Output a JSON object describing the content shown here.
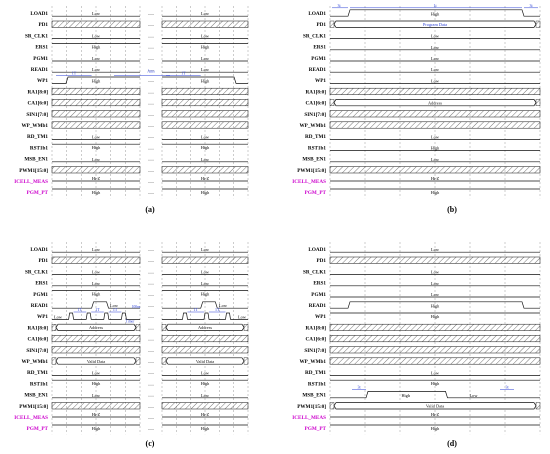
{
  "signals": [
    "LOAD1",
    "PD1",
    "SR_CLK1",
    "ERS1",
    "PGM1",
    "READ1",
    "WP1",
    "RA1[8:0]",
    "CA1[6:0]",
    "SIN1[7:0]",
    "WP_WMb1",
    "RD_TM1",
    "RST1b1",
    "MSB_EN1",
    "PWM1[15:0]",
    "ICELL_MEAS",
    "PGM_PT"
  ],
  "signal_colors": {
    "default": "#000000",
    "highlight": "#cc00cc",
    "annotation": "#2a3fd6"
  },
  "ellipsis": "…",
  "panels": [
    {
      "caption": "(a)",
      "rows": [
        {
          "kind": "level",
          "label_l": "Low",
          "label_r": "Low"
        },
        {
          "kind": "hatch"
        },
        {
          "kind": "level",
          "label_l": "Low",
          "label_r": "Low"
        },
        {
          "kind": "high",
          "label_l": "High",
          "label_r": "High"
        },
        {
          "kind": "level",
          "label_l": "Low",
          "label_r": "Low"
        },
        {
          "kind": "level",
          "label_l": "Low",
          "label_r": "Low"
        },
        {
          "kind": "wp",
          "label_l": "High",
          "label_r": "High",
          "time_l": "1T",
          "time_mid": "Ams",
          "time_r": "1T"
        },
        {
          "kind": "hatch"
        },
        {
          "kind": "hatch"
        },
        {
          "kind": "hatch"
        },
        {
          "kind": "hatch"
        },
        {
          "kind": "level",
          "label_l": "Low",
          "label_r": "Low"
        },
        {
          "kind": "high",
          "label_l": "High",
          "label_r": "High"
        },
        {
          "kind": "level",
          "label_l": "Low",
          "label_r": "Low"
        },
        {
          "kind": "hatch"
        },
        {
          "kind": "hiz",
          "label_l": "Hi-Z",
          "label_r": "Hi-Z"
        },
        {
          "kind": "high",
          "label_l": "High",
          "label_r": "High"
        }
      ]
    },
    {
      "caption": "(b)",
      "rows": [
        {
          "kind": "load",
          "label": "High",
          "time_l": "3t",
          "time_mid": "1t",
          "time_r": "3t"
        },
        {
          "kind": "bus",
          "label": "Program Data"
        },
        {
          "kind": "level",
          "label": "Low"
        },
        {
          "kind": "level",
          "label": "Low"
        },
        {
          "kind": "level",
          "label": "Low"
        },
        {
          "kind": "level",
          "label": "Low"
        },
        {
          "kind": "level",
          "label": "Low"
        },
        {
          "kind": "hatch"
        },
        {
          "kind": "bus",
          "label": "Address"
        },
        {
          "kind": "hatch"
        },
        {
          "kind": "hatch"
        },
        {
          "kind": "level",
          "label": "Low"
        },
        {
          "kind": "level",
          "label": "High"
        },
        {
          "kind": "level",
          "label": "Low"
        },
        {
          "kind": "hatch"
        },
        {
          "kind": "hiz",
          "label": "Hi-Z"
        },
        {
          "kind": "high",
          "label": "High"
        }
      ]
    },
    {
      "caption": "(c)",
      "rows": [
        {
          "kind": "level",
          "label_l": "Low",
          "label_r": "Low"
        },
        {
          "kind": "hatch"
        },
        {
          "kind": "level",
          "label_l": "Low",
          "label_r": "Low"
        },
        {
          "kind": "level",
          "label_l": "Low",
          "label_r": "Low"
        },
        {
          "kind": "high",
          "label_l": "High",
          "label_r": "High"
        },
        {
          "kind": "pulse",
          "label_l": "Low",
          "label_r": "Low"
        },
        {
          "kind": "wpc",
          "label_l": "Low",
          "label_r": "Low",
          "times_l": [
            "1T",
            "1T",
            "1T"
          ],
          "tag_l": "100ns",
          "tag_mid": "Timer",
          "times_r": [
            "1T",
            "1T"
          ]
        },
        {
          "kind": "bus",
          "label_l": "Address",
          "label_r": "Address"
        },
        {
          "kind": "hatch"
        },
        {
          "kind": "hatch"
        },
        {
          "kind": "bus",
          "label_l": "Valid Data",
          "label_r": "Valid Data"
        },
        {
          "kind": "level",
          "label_l": "Low",
          "label_r": "Low"
        },
        {
          "kind": "high",
          "label_l": "High",
          "label_r": "High"
        },
        {
          "kind": "level",
          "label_l": "Low",
          "label_r": "Low"
        },
        {
          "kind": "hatch"
        },
        {
          "kind": "hiz",
          "label_l": "Hi-Z",
          "label_r": "Hi-Z"
        },
        {
          "kind": "high",
          "label_l": "High",
          "label_r": "High"
        }
      ]
    },
    {
      "caption": "(d)",
      "rows": [
        {
          "kind": "level",
          "label": "Low"
        },
        {
          "kind": "hatch"
        },
        {
          "kind": "level",
          "label": "Low"
        },
        {
          "kind": "level",
          "label": "Low"
        },
        {
          "kind": "level",
          "label": "Low"
        },
        {
          "kind": "readpulse",
          "label": "High"
        },
        {
          "kind": "high",
          "label": "High"
        },
        {
          "kind": "hatch"
        },
        {
          "kind": "hatch"
        },
        {
          "kind": "hatch"
        },
        {
          "kind": "hatch"
        },
        {
          "kind": "level",
          "label": "Low"
        },
        {
          "kind": "high",
          "label": "High"
        },
        {
          "kind": "msb",
          "label_l": "High",
          "label_r": "Low",
          "time_l": "3t",
          "time_r": "3t"
        },
        {
          "kind": "bus",
          "label": "Valid Data"
        },
        {
          "kind": "hiz",
          "label": "Hi-Z"
        },
        {
          "kind": "high",
          "label": "High"
        }
      ]
    }
  ]
}
